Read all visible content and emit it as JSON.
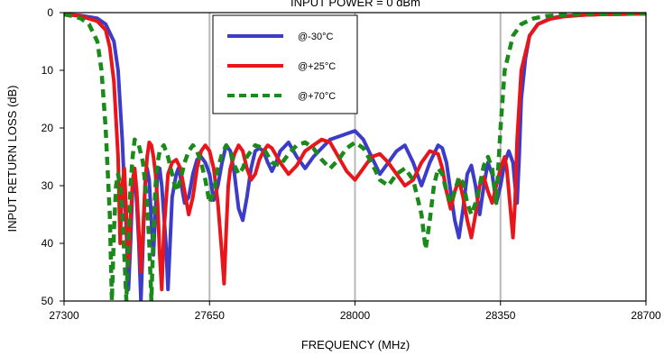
{
  "chart_data": {
    "type": "line",
    "title": "INPUT POWER = 0 dBm",
    "xlabel": "FREQUENCY  (MHz)",
    "ylabel": "INPUT RETURN LOSS (dB)",
    "xlim": [
      27300,
      28700
    ],
    "ylim": [
      0,
      50
    ],
    "y_inverted": true,
    "xticks": [
      27300,
      27650,
      28000,
      28350,
      28700
    ],
    "yticks": [
      0,
      10,
      20,
      30,
      40,
      50
    ],
    "grid": "vertical",
    "legend_position": "top-center",
    "series": [
      {
        "name": "@-30°C",
        "color": "#3c3cc8",
        "style": "solid",
        "x": [
          27300,
          27340,
          27380,
          27400,
          27420,
          27430,
          27440,
          27450,
          27455,
          27460,
          27465,
          27470,
          27475,
          27480,
          27485,
          27490,
          27495,
          27500,
          27505,
          27510,
          27515,
          27520,
          27525,
          27530,
          27535,
          27540,
          27545,
          27550,
          27560,
          27570,
          27575,
          27580,
          27585,
          27590,
          27600,
          27610,
          27620,
          27630,
          27640,
          27650,
          27660,
          27670,
          27680,
          27690,
          27700,
          27710,
          27720,
          27730,
          27740,
          27750,
          27760,
          27770,
          27780,
          27790,
          27800,
          27810,
          27820,
          27840,
          27860,
          27880,
          27900,
          27920,
          27940,
          27960,
          27980,
          28000,
          28020,
          28040,
          28060,
          28080,
          28100,
          28120,
          28140,
          28160,
          28180,
          28200,
          28210,
          28220,
          28230,
          28240,
          28250,
          28260,
          28270,
          28280,
          28290,
          28300,
          28310,
          28320,
          28330,
          28340,
          28350,
          28360,
          28370,
          28380,
          28385,
          28390,
          28395,
          28400,
          28410,
          28420,
          28440,
          28470,
          28500,
          28550,
          28600,
          28650,
          28700
        ],
        "values": [
          0.3,
          0.5,
          1.0,
          2.0,
          5,
          10,
          22,
          38,
          48,
          40,
          30,
          28,
          33,
          40,
          50,
          40,
          30,
          27,
          29,
          36,
          42,
          34,
          28,
          27,
          30,
          35,
          40,
          48,
          32,
          28,
          27,
          28.5,
          31,
          33,
          32,
          28,
          25.5,
          25,
          26,
          28,
          32.5,
          30,
          26,
          23,
          24,
          28,
          34,
          36,
          32,
          27,
          24,
          23.5,
          24,
          26,
          27.5,
          26,
          24,
          22.5,
          25,
          27,
          25,
          23.5,
          22,
          21.5,
          21,
          20.5,
          22,
          25,
          28,
          26,
          24,
          23,
          26,
          30,
          26,
          23,
          23.5,
          26,
          31,
          36,
          39,
          34,
          28,
          26.5,
          30,
          35,
          30,
          26,
          28,
          33,
          30,
          26,
          24,
          26,
          30,
          33,
          25,
          15,
          8,
          4,
          2,
          1,
          0.6,
          0.4,
          0.3,
          0.25,
          0.2
        ]
      },
      {
        "name": "@+25°C",
        "color": "#e8161a",
        "style": "solid",
        "x": [
          27300,
          27340,
          27380,
          27400,
          27410,
          27420,
          27430,
          27435,
          27440,
          27445,
          27450,
          27455,
          27460,
          27465,
          27470,
          27475,
          27480,
          27485,
          27490,
          27495,
          27500,
          27505,
          27510,
          27515,
          27520,
          27525,
          27530,
          27535,
          27540,
          27550,
          27560,
          27570,
          27580,
          27590,
          27600,
          27610,
          27620,
          27630,
          27640,
          27650,
          27660,
          27670,
          27680,
          27685,
          27690,
          27695,
          27700,
          27710,
          27720,
          27730,
          27740,
          27750,
          27760,
          27770,
          27780,
          27790,
          27800,
          27820,
          27840,
          27860,
          27880,
          27900,
          27920,
          27940,
          27960,
          27980,
          28000,
          28020,
          28040,
          28060,
          28080,
          28100,
          28120,
          28140,
          28160,
          28180,
          28200,
          28210,
          28220,
          28230,
          28240,
          28250,
          28260,
          28270,
          28280,
          28290,
          28300,
          28310,
          28320,
          28330,
          28340,
          28350,
          28360,
          28365,
          28370,
          28375,
          28380,
          28385,
          28390,
          28400,
          28420,
          28440,
          28470,
          28500,
          28550,
          28600,
          28650,
          28700
        ],
        "values": [
          0.3,
          0.6,
          1.5,
          3,
          6,
          12,
          25,
          40,
          30,
          27,
          35,
          44,
          36,
          29,
          27,
          31,
          38,
          45,
          38,
          30,
          25,
          22.5,
          23,
          25,
          28,
          33,
          42,
          48,
          38,
          28,
          26,
          25.5,
          27,
          31,
          35,
          32,
          27,
          24,
          23,
          24,
          27,
          33,
          42,
          47,
          38,
          30,
          27,
          24.5,
          23,
          24,
          27,
          29,
          28,
          25.5,
          24,
          23,
          23.5,
          26,
          28,
          26.5,
          24,
          23,
          22,
          22.5,
          25,
          27.5,
          29,
          27,
          25,
          24.5,
          26,
          28,
          30,
          29,
          26,
          24,
          24.5,
          27,
          31,
          34,
          31,
          29,
          32,
          36,
          39,
          35,
          30,
          28.5,
          31,
          33,
          30,
          27,
          25,
          27,
          31,
          35,
          39,
          33,
          22,
          10,
          4,
          2,
          1.1,
          0.7,
          0.4,
          0.3,
          0.25,
          0.2
        ]
      },
      {
        "name": "@+70°C",
        "color": "#1a8a1a",
        "style": "dashed",
        "x": [
          27300,
          27320,
          27340,
          27360,
          27380,
          27390,
          27400,
          27410,
          27415,
          27420,
          27425,
          27430,
          27435,
          27440,
          27445,
          27450,
          27455,
          27460,
          27465,
          27470,
          27480,
          27490,
          27500,
          27505,
          27510,
          27515,
          27520,
          27525,
          27530,
          27540,
          27550,
          27560,
          27570,
          27580,
          27590,
          27600,
          27610,
          27620,
          27630,
          27640,
          27650,
          27660,
          27670,
          27680,
          27690,
          27700,
          27710,
          27720,
          27730,
          27740,
          27760,
          27780,
          27800,
          27820,
          27840,
          27860,
          27880,
          27900,
          27920,
          27940,
          27960,
          27980,
          28000,
          28020,
          28040,
          28060,
          28080,
          28100,
          28120,
          28140,
          28150,
          28160,
          28170,
          28180,
          28190,
          28200,
          28210,
          28220,
          28230,
          28240,
          28250,
          28260,
          28270,
          28280,
          28290,
          28300,
          28310,
          28320,
          28330,
          28340,
          28350,
          28360,
          28380,
          28400,
          28430,
          28460,
          28500,
          28550,
          28600,
          28650,
          28700
        ],
        "values": [
          0.3,
          0.6,
          1.0,
          2.0,
          5,
          10,
          20,
          35,
          50,
          38,
          30,
          28,
          30,
          35,
          42,
          50,
          40,
          30,
          25,
          22,
          23,
          26,
          33,
          40,
          50,
          38,
          30,
          26,
          24,
          23,
          25,
          28,
          31,
          29,
          26,
          24,
          23,
          24,
          26,
          29,
          33,
          31,
          27,
          24.5,
          23,
          24,
          26.5,
          28,
          27,
          25,
          23,
          23.5,
          26,
          26.5,
          24.5,
          23,
          22.5,
          23.5,
          25.5,
          27,
          25.5,
          23.5,
          22.5,
          23.5,
          26,
          29,
          30,
          28,
          27,
          29,
          32,
          35,
          41,
          36,
          30,
          27,
          28,
          31,
          33,
          31,
          28.5,
          29.5,
          33,
          35,
          33,
          30,
          26.5,
          25,
          27,
          33,
          20,
          10,
          4,
          2,
          1,
          0.6,
          0.4,
          0.3,
          0.25,
          0.2,
          0.2
        ]
      }
    ]
  }
}
